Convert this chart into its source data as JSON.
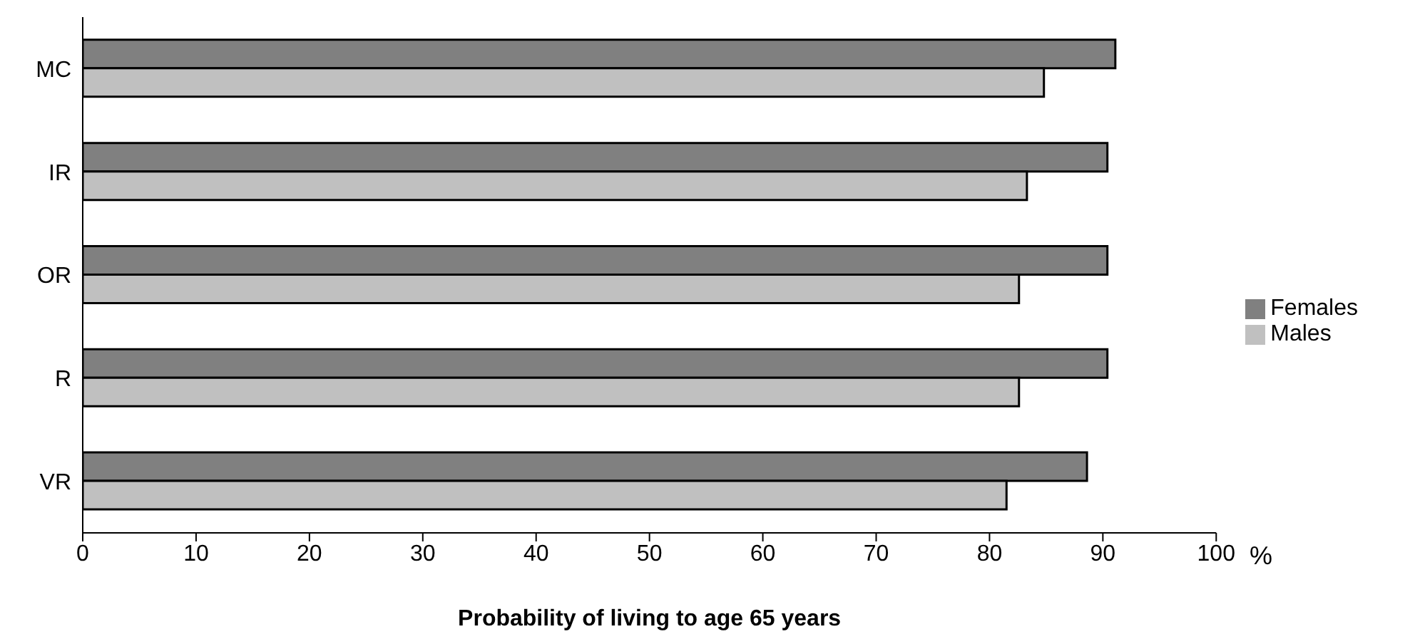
{
  "chart_data": {
    "type": "bar",
    "orientation": "horizontal",
    "xlabel": "Probability of living to age 65 years",
    "annotations": [
      "%"
    ],
    "categories": [
      "MC",
      "IR",
      "OR",
      "R",
      "VR"
    ],
    "series": [
      {
        "name": "Females",
        "color": "#808080",
        "values": [
          91.1,
          90.4,
          90.4,
          90.4,
          88.6
        ]
      },
      {
        "name": "Males",
        "color": "#c0c0c0",
        "values": [
          84.8,
          83.3,
          82.6,
          82.6,
          81.5
        ]
      }
    ],
    "xlim": [
      0,
      100
    ],
    "xticks": [
      0,
      10,
      20,
      30,
      40,
      50,
      60,
      70,
      80,
      90,
      100
    ],
    "grid": false,
    "legend": "right"
  }
}
